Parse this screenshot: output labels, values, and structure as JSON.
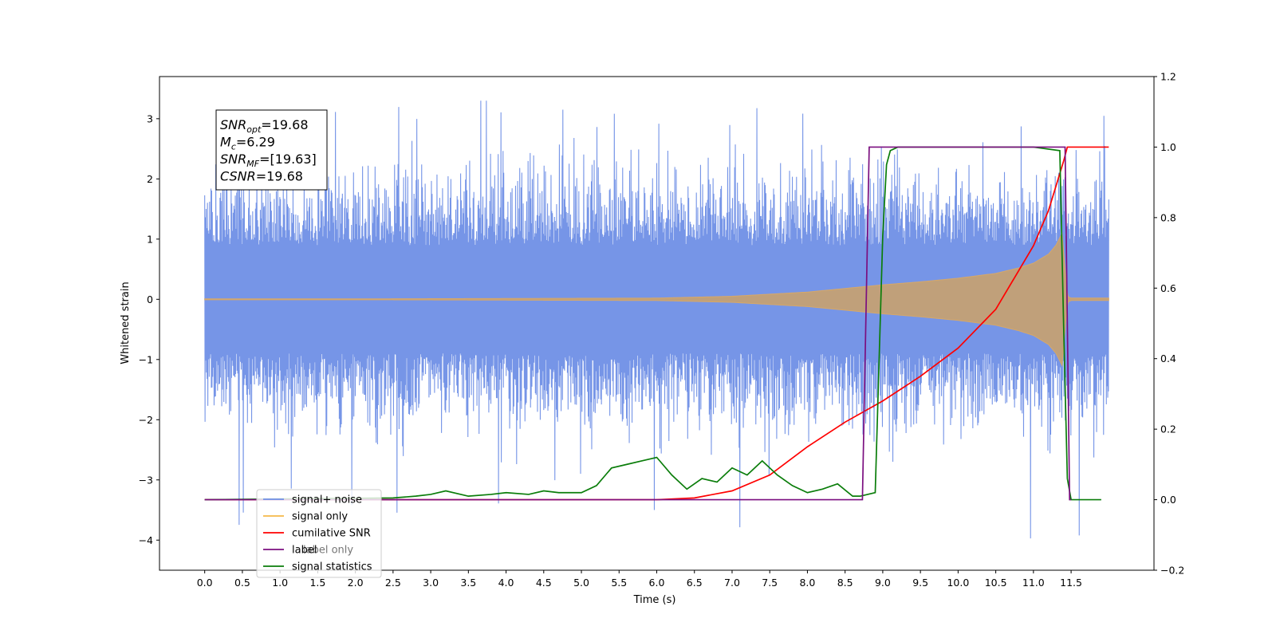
{
  "chart_data": {
    "type": "line",
    "xlabel": "Time (s)",
    "ylabel_left": "Whitened strain",
    "ylabel_right": "",
    "xlim": [
      -0.6,
      12.6
    ],
    "ylim_left": [
      -4.5,
      3.7
    ],
    "ylim_right": [
      -0.2,
      1.2
    ],
    "x_ticks": [
      0.0,
      0.5,
      1.0,
      1.5,
      2.0,
      2.5,
      3.0,
      3.5,
      4.0,
      4.5,
      5.0,
      5.5,
      6.0,
      6.5,
      7.0,
      7.5,
      8.0,
      8.5,
      9.0,
      9.5,
      10.0,
      10.5,
      11.0,
      11.5
    ],
    "x_tick_labels": [
      "0.0",
      "0.5",
      "1.0",
      "1.5",
      "2.0",
      "2.5",
      "3.0",
      "3.5",
      "4.0",
      "4.5",
      "5.0",
      "5.5",
      "6.0",
      "6.5",
      "7.0",
      "7.5",
      "8.0",
      "8.5",
      "9.0",
      "9.5",
      "10.0",
      "10.5",
      "11.0",
      "11.5"
    ],
    "y_left_ticks": [
      3,
      2,
      1,
      0,
      -1,
      -2,
      -3,
      -4
    ],
    "y_left_tick_labels": [
      "3",
      "2",
      "1",
      "0",
      "−1",
      "−2",
      "−3",
      "−4"
    ],
    "y_right_ticks": [
      1.2,
      1.0,
      0.8,
      0.6,
      0.4,
      0.2,
      0.0,
      -0.2
    ],
    "y_right_tick_labels": [
      "1.2",
      "1.0",
      "0.8",
      "0.6",
      "0.4",
      "0.2",
      "0.0",
      "−0.2"
    ],
    "grid": false,
    "legend_position": "lower-left",
    "annotation": {
      "lines": [
        {
          "label": "SNR",
          "sub": "opt",
          "value": "=19.68"
        },
        {
          "label": "M",
          "sub": "c",
          "value": "=6.29"
        },
        {
          "label": "SNR",
          "sub": "MF",
          "value": "=[19.63]"
        },
        {
          "label": "CSNR",
          "sub": "",
          "value": "=19.68"
        }
      ]
    },
    "series": [
      {
        "name": "signal+ noise",
        "axis": "left",
        "color": "#6f8fe6",
        "kind": "noise-band",
        "x_range": [
          0.0,
          12.0
        ],
        "typical_band": [
          -1.6,
          1.6
        ],
        "peak_range": [
          -4.1,
          3.3
        ]
      },
      {
        "name": "signal only",
        "axis": "left",
        "color": "#f4b84a",
        "kind": "chirp-envelope",
        "envelope": {
          "x": [
            0.0,
            6.0,
            7.0,
            8.0,
            8.5,
            9.0,
            9.5,
            10.0,
            10.5,
            10.8,
            11.0,
            11.2,
            11.3,
            11.38,
            11.45,
            11.5,
            12.0
          ],
          "y": [
            0.0,
            0.02,
            0.05,
            0.12,
            0.18,
            0.24,
            0.29,
            0.35,
            0.43,
            0.52,
            0.6,
            0.75,
            0.9,
            1.1,
            0.05,
            0.02,
            0.02
          ]
        }
      },
      {
        "name": "cumilative SNR",
        "axis": "right",
        "color": "#ff0000",
        "x": [
          0.0,
          6.0,
          6.5,
          7.0,
          7.5,
          8.0,
          8.5,
          9.0,
          9.5,
          10.0,
          10.5,
          11.0,
          11.2,
          11.4,
          11.45,
          12.0
        ],
        "y": [
          0.0,
          0.0,
          0.005,
          0.025,
          0.07,
          0.15,
          0.22,
          0.28,
          0.35,
          0.43,
          0.54,
          0.72,
          0.82,
          0.96,
          1.0,
          1.0
        ]
      },
      {
        "name": "label",
        "axis": "right",
        "color": "#7b0f80",
        "x": [
          0.0,
          8.73,
          8.82,
          11.42,
          11.48,
          11.5
        ],
        "y": [
          0.0,
          0.0,
          1.0,
          1.0,
          0.0,
          0.0
        ]
      },
      {
        "name": "label only",
        "axis": "right",
        "color": "#e7b5d2",
        "x": [
          0.0,
          8.73,
          8.82,
          11.42,
          11.48,
          11.5
        ],
        "y": [
          0.0,
          0.0,
          1.0,
          1.0,
          0.0,
          0.0
        ]
      },
      {
        "name": "signal statistics",
        "axis": "right",
        "color": "#0a7d0a",
        "x": [
          0.0,
          2.5,
          2.8,
          3.0,
          3.2,
          3.5,
          3.8,
          4.0,
          4.3,
          4.5,
          4.7,
          5.0,
          5.2,
          5.4,
          5.6,
          5.8,
          6.0,
          6.2,
          6.4,
          6.6,
          6.8,
          7.0,
          7.2,
          7.4,
          7.6,
          7.8,
          8.0,
          8.2,
          8.4,
          8.6,
          8.7,
          8.9,
          9.0,
          9.05,
          9.1,
          9.2,
          9.3,
          10.0,
          10.5,
          11.0,
          11.35,
          11.4,
          11.45,
          11.5,
          11.9
        ],
        "y": [
          0.0,
          0.005,
          0.01,
          0.015,
          0.025,
          0.01,
          0.015,
          0.02,
          0.015,
          0.025,
          0.02,
          0.02,
          0.04,
          0.09,
          0.1,
          0.11,
          0.12,
          0.07,
          0.03,
          0.06,
          0.05,
          0.09,
          0.07,
          0.11,
          0.07,
          0.04,
          0.02,
          0.03,
          0.045,
          0.01,
          0.01,
          0.02,
          0.75,
          0.95,
          0.99,
          1.0,
          1.0,
          1.0,
          1.0,
          1.0,
          0.99,
          0.5,
          0.06,
          0.0,
          0.0
        ]
      }
    ]
  }
}
